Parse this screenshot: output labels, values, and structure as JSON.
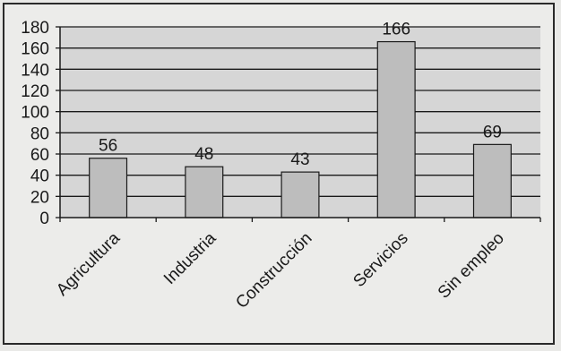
{
  "chart_data": {
    "type": "bar",
    "title": "",
    "xlabel": "",
    "ylabel": "",
    "categories": [
      "Agricultura",
      "Industria",
      "Construcción",
      "Servicios",
      "Sin empleo"
    ],
    "values": [
      56,
      48,
      43,
      166,
      69
    ],
    "ylim": [
      0,
      180
    ],
    "yticks": [
      0,
      20,
      40,
      60,
      80,
      100,
      120,
      140,
      160,
      180
    ],
    "grid": true,
    "legend": "none",
    "data_labels": true,
    "colors": {
      "bar": "#bdbdbd",
      "plot_bg": "#d6d6d6",
      "grid": "#1a1a1a"
    }
  }
}
